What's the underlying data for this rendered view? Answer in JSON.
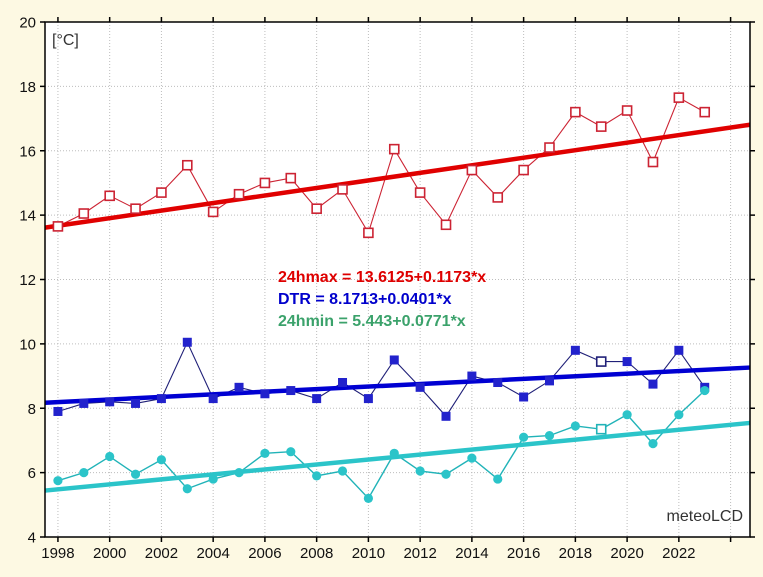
{
  "figure": {
    "bg_color": "#FDF9E3",
    "plot_bg_color": "#FFFFFF",
    "grid_color": "#BDBDBD",
    "axis_color": "#000000",
    "unit_label": "[°C]",
    "watermark": "meteoLCD"
  },
  "chart_data": {
    "type": "line",
    "title": "",
    "xlabel": "",
    "ylabel": "[°C]",
    "x_axis": {
      "range": [
        1997.5,
        2024.75
      ],
      "tick_years": [
        1998,
        2000,
        2002,
        2004,
        2006,
        2008,
        2010,
        2012,
        2014,
        2016,
        2018,
        2020,
        2022,
        2024
      ],
      "tick_labels": [
        "1998",
        "2000",
        "2002",
        "2004",
        "2006",
        "2008",
        "2010",
        "2012",
        "2014",
        "2016",
        "2018",
        "2020",
        "2022",
        ""
      ],
      "grid": true
    },
    "y_axis": {
      "range": [
        4,
        20
      ],
      "tick_values": [
        4,
        6,
        8,
        10,
        12,
        14,
        16,
        18,
        20
      ],
      "tick_labels": [
        "4",
        "6",
        "8",
        "10",
        "12",
        "14",
        "16",
        "18",
        "20"
      ],
      "grid_values": [
        6,
        8,
        10,
        12,
        14,
        16,
        18
      ],
      "grid": true
    },
    "x": [
      1998,
      1999,
      2000,
      2001,
      2002,
      2003,
      2004,
      2005,
      2006,
      2007,
      2008,
      2009,
      2010,
      2011,
      2012,
      2013,
      2014,
      2015,
      2016,
      2017,
      2018,
      2019,
      2020,
      2021,
      2022,
      2023
    ],
    "series": [
      {
        "name": "24hmax",
        "marker": "open-square",
        "marker_color": "#CC2333",
        "line_color": "#CC2333",
        "trend_color": "#E00000",
        "equation_color": "#DE0000",
        "open_marker_years": [],
        "values": [
          13.65,
          14.05,
          14.6,
          14.2,
          14.7,
          15.55,
          14.1,
          14.65,
          15.0,
          15.15,
          14.2,
          14.8,
          13.45,
          16.05,
          14.7,
          13.7,
          15.4,
          14.55,
          15.4,
          16.1,
          17.2,
          16.75,
          17.25,
          15.65,
          17.65,
          17.2
        ],
        "trend": {
          "label": "24hmax = 13.6125+0.1173*x",
          "intercept": 13.6125,
          "slope": 0.1173,
          "x_origin_year": 1997.5
        }
      },
      {
        "name": "DTR",
        "marker": "filled-square",
        "marker_color": "#2222CC",
        "line_color": "#202078",
        "trend_color": "#0000D2",
        "equation_color": "#0000CC",
        "open_marker_years": [
          2019
        ],
        "values": [
          7.9,
          8.15,
          8.2,
          8.15,
          8.3,
          10.05,
          8.3,
          8.65,
          8.45,
          8.55,
          8.3,
          8.8,
          8.3,
          9.5,
          8.65,
          7.75,
          9.0,
          8.8,
          8.35,
          8.85,
          9.8,
          9.45,
          9.45,
          8.75,
          9.8,
          8.65
        ],
        "trend": {
          "label": "DTR = 8.1713+0.0401*x",
          "intercept": 8.1713,
          "slope": 0.0401,
          "x_origin_year": 1997.5
        }
      },
      {
        "name": "24hmin",
        "marker": "filled-circle",
        "marker_color": "#2BC4C9",
        "line_color": "#21B3B8",
        "trend_color": "#2BC4C9",
        "equation_color": "#3BA26B",
        "open_marker_years": [
          2019
        ],
        "values": [
          5.75,
          6.0,
          6.5,
          5.95,
          6.4,
          5.5,
          5.8,
          6.0,
          6.6,
          6.65,
          5.9,
          6.05,
          5.2,
          6.6,
          6.05,
          5.95,
          6.45,
          5.8,
          7.1,
          7.15,
          7.45,
          7.35,
          7.8,
          6.9,
          7.8,
          8.55
        ],
        "trend": {
          "label": "24hmin = 5.443+0.0771*x",
          "intercept": 5.443,
          "slope": 0.0771,
          "x_origin_year": 1997.5
        }
      }
    ],
    "legend_position": "middle-left-annotations",
    "annotations": {
      "equations": [
        "24hmax = 13.6125+0.1173*x",
        "DTR = 8.1713+0.0401*x",
        "24hmin = 5.443+0.0771*x"
      ]
    }
  }
}
